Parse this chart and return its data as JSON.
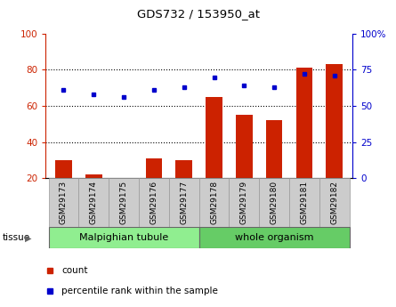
{
  "title": "GDS732 / 153950_at",
  "samples": [
    "GSM29173",
    "GSM29174",
    "GSM29175",
    "GSM29176",
    "GSM29177",
    "GSM29178",
    "GSM29179",
    "GSM29180",
    "GSM29181",
    "GSM29182"
  ],
  "count_values": [
    30,
    22,
    20,
    31,
    30,
    65,
    55,
    52,
    81,
    83
  ],
  "percentile_values": [
    61,
    58,
    56,
    61,
    63,
    70,
    64,
    63,
    72,
    71
  ],
  "left_ylim": [
    20,
    100
  ],
  "right_ylim": [
    0,
    100
  ],
  "right_yticks": [
    0,
    25,
    50,
    75,
    100
  ],
  "right_yticklabels": [
    "0",
    "25",
    "50",
    "75",
    "100%"
  ],
  "left_yticks": [
    20,
    40,
    60,
    80,
    100
  ],
  "left_yticklabels": [
    "20",
    "40",
    "60",
    "80",
    "100"
  ],
  "tissue_groups": [
    {
      "label": "Malpighian tubule",
      "n_samples": 5,
      "color": "#90EE90"
    },
    {
      "label": "whole organism",
      "n_samples": 5,
      "color": "#66CC66"
    }
  ],
  "bar_color": "#CC2200",
  "dot_color": "#0000CC",
  "tick_bg_color": "#CCCCCC",
  "tick_bg_edge": "#999999",
  "tissue_border_color": "#888888",
  "legend_count_color": "#CC2200",
  "legend_pct_color": "#0000CC"
}
